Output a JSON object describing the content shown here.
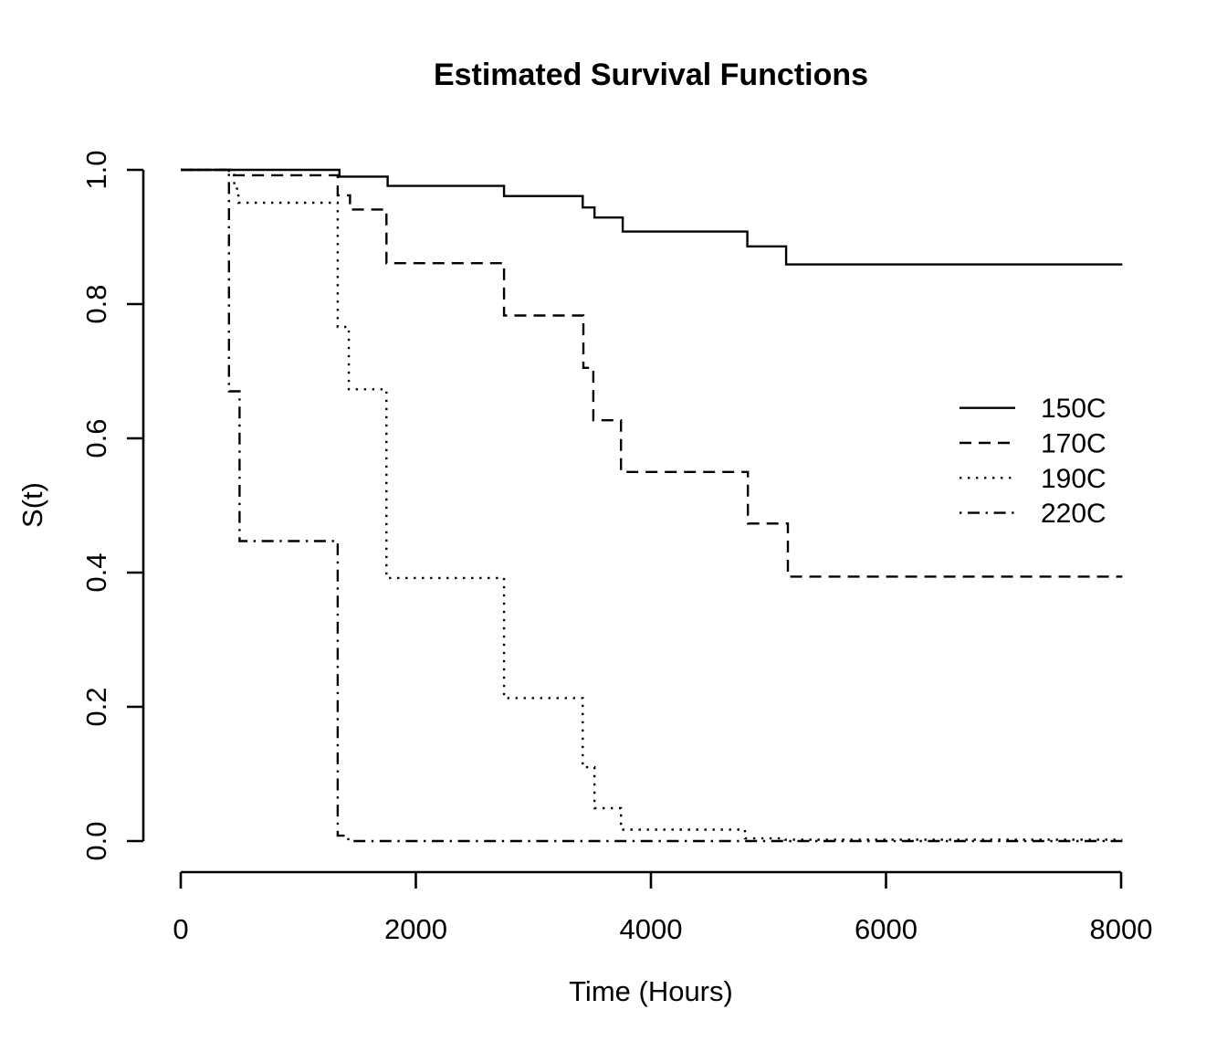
{
  "figure": {
    "title": "Estimated Survival Functions",
    "background": "#ffffff",
    "foreground": "#000000"
  },
  "chart_data": {
    "type": "line",
    "subtype": "kaplan-meier-step",
    "title": "Estimated Survival Functions",
    "xlabel": "Time (Hours)",
    "ylabel": "S(t)",
    "xlim": [
      0,
      8100
    ],
    "ylim": [
      0.0,
      1.0
    ],
    "grid": false,
    "x_ticks": [
      0,
      2000,
      4000,
      6000,
      8000
    ],
    "x_tick_labels": [
      "0",
      "2000",
      "4000",
      "6000",
      "8000"
    ],
    "y_ticks": [
      0.0,
      0.2,
      0.4,
      0.6,
      0.8,
      1.0
    ],
    "y_tick_labels": [
      "0.0",
      "0.2",
      "0.4",
      "0.6",
      "0.8",
      "1.0"
    ],
    "legend_position": "right-middle",
    "end_time": 8010,
    "series": [
      {
        "name": "150C",
        "linetype": "solid",
        "start": [
          0,
          1.0
        ],
        "steps": [
          [
            1350,
            0.99
          ],
          [
            1760,
            0.976
          ],
          [
            2750,
            0.961
          ],
          [
            3420,
            0.944
          ],
          [
            3520,
            0.929
          ],
          [
            3760,
            0.908
          ],
          [
            4820,
            0.886
          ],
          [
            5150,
            0.859
          ]
        ]
      },
      {
        "name": "170C",
        "linetype": "dashed",
        "start": [
          0,
          1.0
        ],
        "steps": [
          [
            410,
            0.992
          ],
          [
            1335,
            0.962
          ],
          [
            1440,
            0.941
          ],
          [
            1750,
            0.861
          ],
          [
            2750,
            0.783
          ],
          [
            3425,
            0.705
          ],
          [
            3510,
            0.627
          ],
          [
            3745,
            0.55
          ],
          [
            4825,
            0.473
          ],
          [
            5165,
            0.394
          ]
        ]
      },
      {
        "name": "190C",
        "linetype": "dotted",
        "start": [
          0,
          1.0
        ],
        "steps": [
          [
            455,
            0.972
          ],
          [
            490,
            0.951
          ],
          [
            1335,
            0.766
          ],
          [
            1430,
            0.673
          ],
          [
            1750,
            0.392
          ],
          [
            2750,
            0.213
          ],
          [
            3420,
            0.11
          ],
          [
            3520,
            0.049
          ],
          [
            3745,
            0.017
          ],
          [
            4800,
            0.004
          ],
          [
            5140,
            0.002
          ]
        ]
      },
      {
        "name": "220C",
        "linetype": "dashdot",
        "start": [
          0,
          1.0
        ],
        "steps": [
          [
            410,
            0.67
          ],
          [
            500,
            0.447
          ],
          [
            1335,
            0.008
          ],
          [
            1425,
            0.0
          ]
        ]
      }
    ],
    "legend_entries": [
      {
        "label": "150C",
        "linetype": "solid"
      },
      {
        "label": "170C",
        "linetype": "dashed"
      },
      {
        "label": "190C",
        "linetype": "dotted"
      },
      {
        "label": "220C",
        "linetype": "dashdot"
      }
    ]
  },
  "colors": {
    "line": "#000000",
    "background": "#ffffff"
  }
}
